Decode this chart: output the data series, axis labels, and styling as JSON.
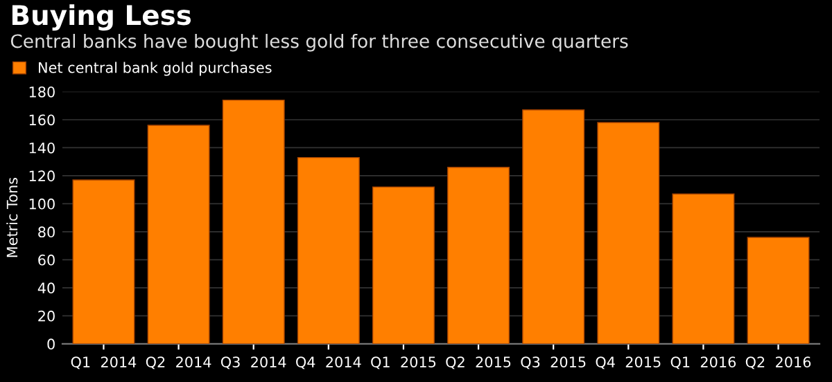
{
  "chart_data": {
    "type": "bar",
    "title": "Buying Less",
    "subtitle": "Central banks have bought less gold for three consecutive quarters",
    "ylabel": "Metric Tons",
    "categories": [
      "Q1  2014",
      "Q2  2014",
      "Q3  2014",
      "Q4  2014",
      "Q1  2015",
      "Q2  2015",
      "Q3  2015",
      "Q4  2015",
      "Q1  2016",
      "Q2  2016"
    ],
    "series": [
      {
        "name": "Net central bank gold purchases",
        "color": "#ff7f00",
        "values": [
          117,
          156,
          174,
          133,
          112,
          126,
          167,
          158,
          107,
          76
        ]
      }
    ],
    "ylim": [
      0,
      180
    ],
    "yticks": [
      0,
      20,
      40,
      60,
      80,
      100,
      120,
      140,
      160,
      180
    ],
    "grid": "y",
    "legend": "top left"
  }
}
